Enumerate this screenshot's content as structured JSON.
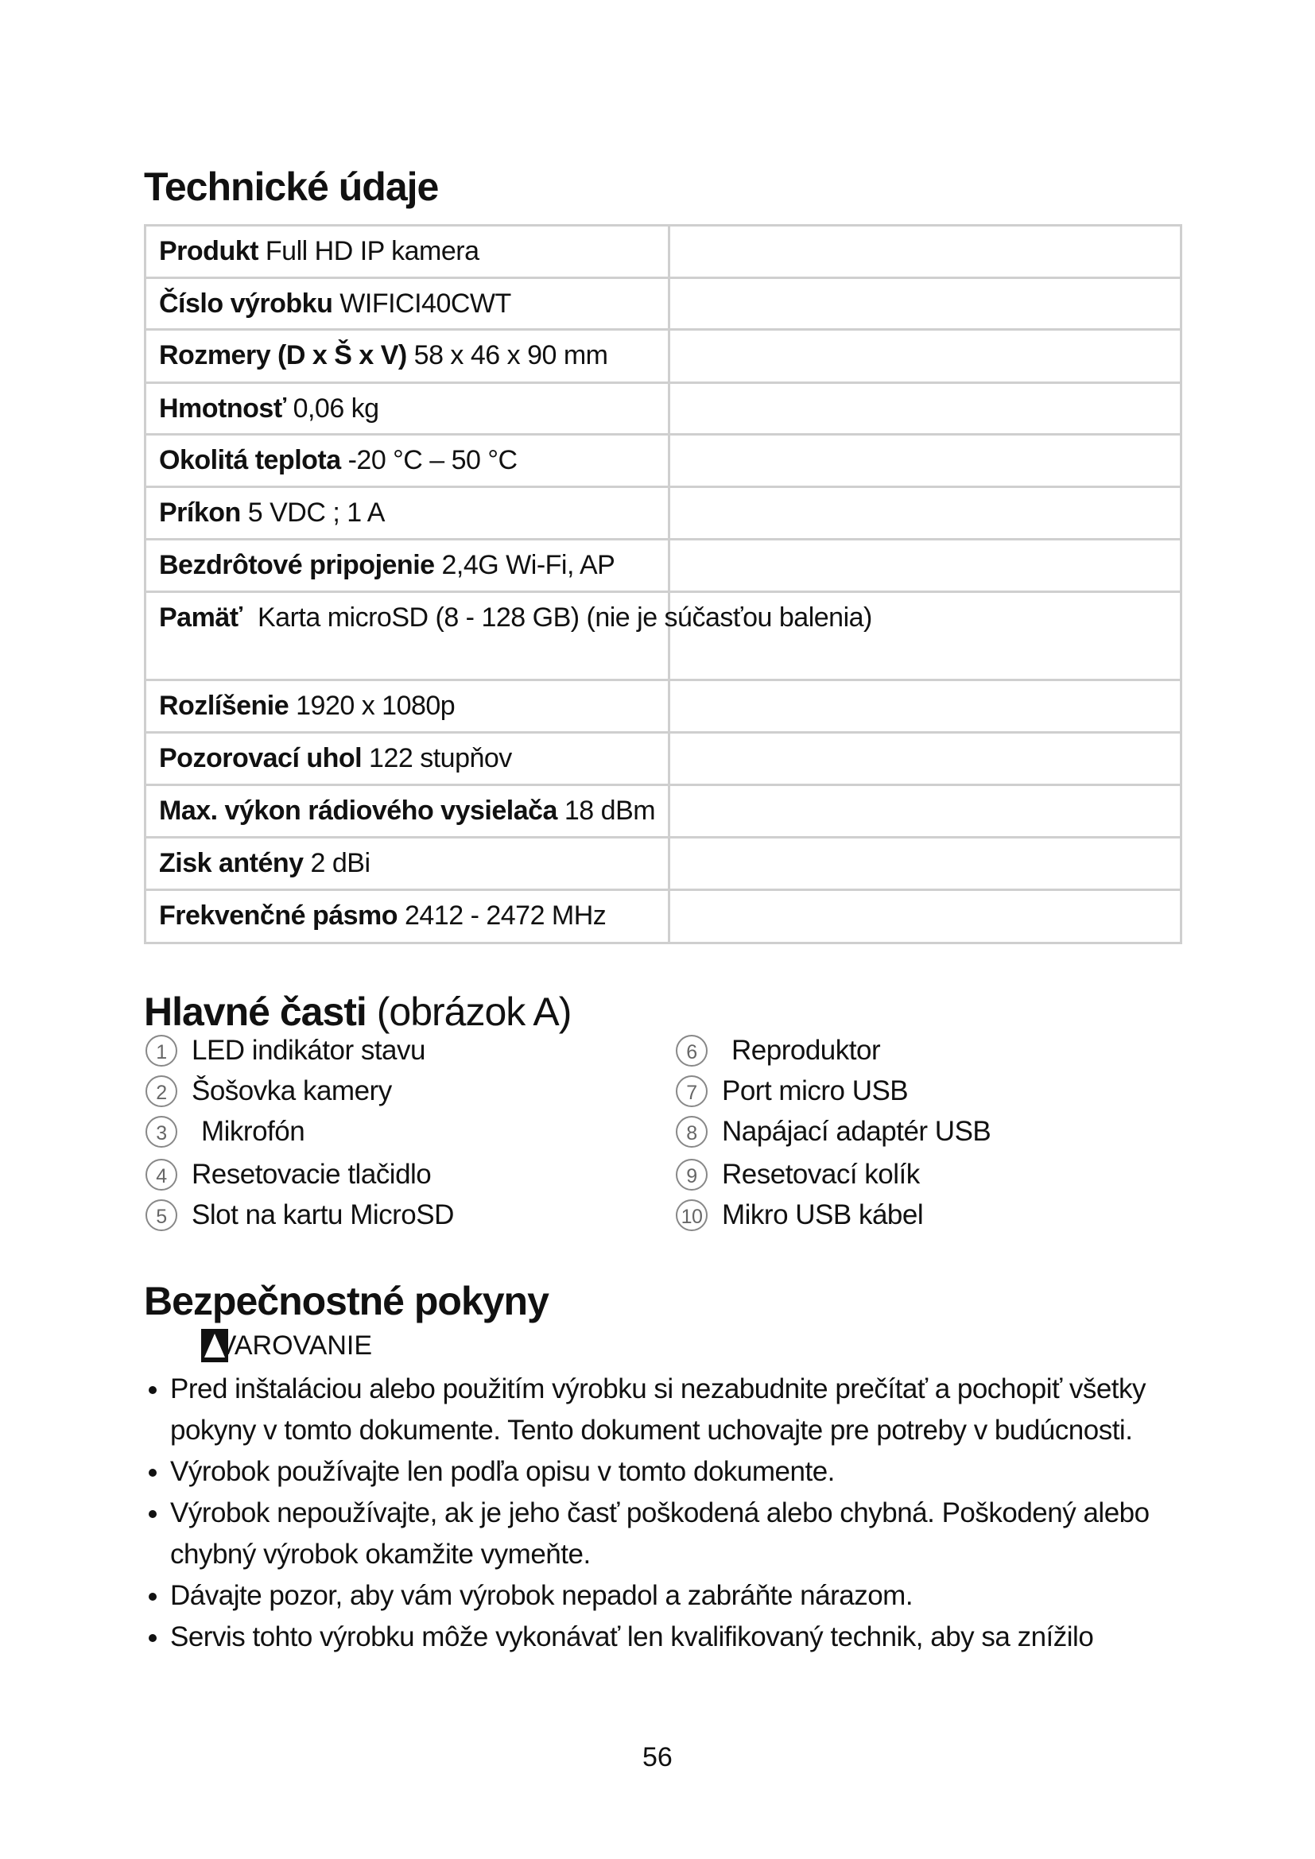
{
  "specs": {
    "title": "Technické údaje",
    "rows": [
      {
        "label": "Produkt",
        "value": "Full HD IP kamera"
      },
      {
        "label": "Číslo výrobku",
        "value": "WIFICI40CWT"
      },
      {
        "label": "Rozmery (D x Š x V)",
        "value": "58 x 46 x 90 mm"
      },
      {
        "label": "Hmotnosť",
        "value": "0,06 kg"
      },
      {
        "label": "Okolitá teplota",
        "value": "-20 °C – 50 °C"
      },
      {
        "label": "Príkon",
        "value": "5 VDC ; 1 A"
      },
      {
        "label": "Bezdrôtové pripojenie",
        "value": "2,4G Wi-Fi, AP"
      },
      {
        "label": "Pamäť",
        "value": "Karta microSD (8 - 128 GB) (nie je súčasťou balenia)"
      },
      {
        "label": "Rozlíšenie",
        "value": "1920 x 1080p"
      },
      {
        "label": "Pozorovací uhol",
        "value": "122 stupňov"
      },
      {
        "label": "Max. výkon rádiového vysielača",
        "value": "18 dBm"
      },
      {
        "label": "Zisk antény",
        "value": "2 dBi"
      },
      {
        "label": "Frekvenčné pásmo",
        "value": "2412 - 2472 MHz"
      }
    ]
  },
  "parts": {
    "title": "Hlavné časti",
    "subtitle": "(obrázok A)",
    "items": [
      {
        "n": "1",
        "label": "LED indikátor stavu"
      },
      {
        "n": "2",
        "label": "Šošovka kamery"
      },
      {
        "n": "3",
        "label": "Mikrofón"
      },
      {
        "n": "4",
        "label": "Resetovacie tlačidlo"
      },
      {
        "n": "5",
        "label": "Slot na kartu MicroSD"
      },
      {
        "n": "6",
        "label": "Reproduktor"
      },
      {
        "n": "7",
        "label": "Port micro USB"
      },
      {
        "n": "8",
        "label": "Napájací adaptér USB"
      },
      {
        "n": "9",
        "label": "Resetovací kolík"
      },
      {
        "n": "10",
        "label": "Mikro USB kábel"
      }
    ]
  },
  "safety": {
    "title": "Bezpečnostné pokyny",
    "warning_icon": "warning-triangle-icon",
    "warning": "VAROVANIE",
    "bullets": [
      "Pred inštaláciou alebo použitím výrobku si nezabudnite prečítať a pochopiť všetky pokyny v tomto dokumente. Tento dokument uchovajte pre potreby v budúcnosti.",
      "Výrobok používajte len podľa opisu v tomto dokumente.",
      "Výrobok nepoužívajte, ak je jeho časť poškodená alebo chybná. Poškodený alebo chybný výrobok okamžite vymeňte.",
      "Dávajte pozor, aby vám výrobok nepadol a zabráňte nárazom.",
      "Servis tohto výrobku môže vykonávať len kvalifikovaný technik, aby sa znížilo"
    ]
  },
  "page_number": "56"
}
